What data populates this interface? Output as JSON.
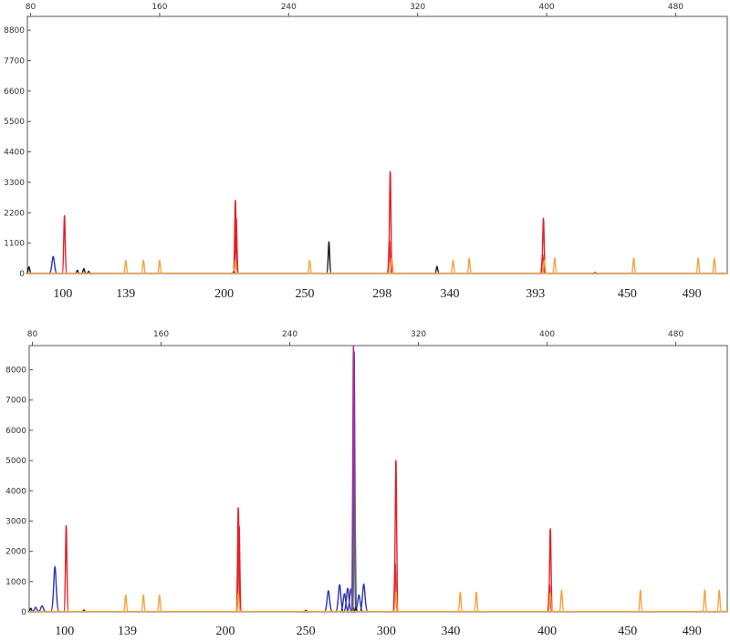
{
  "colors": {
    "red": "#e41f26",
    "orange": "#f7a23c",
    "blue": "#2b35b8",
    "black": "#1a1a1a",
    "green": "#2f8f5b",
    "magenta": "#b0309a",
    "axis": "#555555"
  },
  "chart_data": [
    {
      "type": "line",
      "title": "",
      "xlabel": "",
      "ylabel": "",
      "xlim": [
        78,
        512
      ],
      "ylim": [
        0,
        9300
      ],
      "top_ticks": [
        80,
        160,
        240,
        320,
        400,
        480
      ],
      "y_ticks": [
        0,
        1100,
        2200,
        3300,
        4400,
        5500,
        6600,
        7700,
        8800
      ],
      "size_labels": [
        {
          "text": "100",
          "x": 100
        },
        {
          "text": "139",
          "x": 139
        },
        {
          "text": "200",
          "x": 200
        },
        {
          "text": "250",
          "x": 250
        },
        {
          "text": "298",
          "x": 298
        },
        {
          "text": "340",
          "x": 340
        },
        {
          "text": "393",
          "x": 393
        },
        {
          "text": "450",
          "x": 450
        },
        {
          "text": "490",
          "x": 490
        }
      ],
      "peaks": [
        {
          "color": "red",
          "x": 101,
          "h": 2100
        },
        {
          "color": "red",
          "x": 207,
          "h": 2650
        },
        {
          "color": "red",
          "x": 207.5,
          "h": 2000
        },
        {
          "color": "red",
          "x": 303,
          "h": 3700
        },
        {
          "color": "red",
          "x": 302.5,
          "h": 1200
        },
        {
          "color": "red",
          "x": 398,
          "h": 2000
        },
        {
          "color": "red",
          "x": 397.5,
          "h": 700
        },
        {
          "color": "orange",
          "x": 139,
          "h": 480
        },
        {
          "color": "orange",
          "x": 150,
          "h": 480
        },
        {
          "color": "orange",
          "x": 160,
          "h": 480
        },
        {
          "color": "orange",
          "x": 207,
          "h": 480
        },
        {
          "color": "orange",
          "x": 253,
          "h": 480
        },
        {
          "color": "orange",
          "x": 304,
          "h": 550
        },
        {
          "color": "orange",
          "x": 342,
          "h": 480
        },
        {
          "color": "orange",
          "x": 352,
          "h": 560
        },
        {
          "color": "orange",
          "x": 398.5,
          "h": 480
        },
        {
          "color": "orange",
          "x": 405,
          "h": 560
        },
        {
          "color": "orange",
          "x": 454,
          "h": 560
        },
        {
          "color": "orange",
          "x": 494,
          "h": 560
        },
        {
          "color": "orange",
          "x": 504,
          "h": 560
        },
        {
          "color": "blue",
          "x": 94,
          "h": 620
        },
        {
          "color": "black",
          "x": 79,
          "h": 250
        },
        {
          "color": "black",
          "x": 109,
          "h": 120
        },
        {
          "color": "black",
          "x": 113,
          "h": 180
        },
        {
          "color": "black",
          "x": 116,
          "h": 80
        },
        {
          "color": "black",
          "x": 206,
          "h": 60
        },
        {
          "color": "black",
          "x": 265,
          "h": 1150
        },
        {
          "color": "black",
          "x": 332,
          "h": 260
        },
        {
          "color": "black",
          "x": 430,
          "h": 40
        }
      ]
    },
    {
      "type": "line",
      "title": "",
      "xlabel": "",
      "ylabel": "",
      "xlim": [
        78,
        512
      ],
      "ylim": [
        0,
        8800
      ],
      "top_ticks": [
        80,
        160,
        240,
        320,
        400,
        480
      ],
      "y_ticks": [
        0,
        1000,
        2000,
        3000,
        4000,
        5000,
        6000,
        7000,
        8000
      ],
      "size_labels": [
        {
          "text": "100",
          "x": 100
        },
        {
          "text": "139",
          "x": 139
        },
        {
          "text": "200",
          "x": 200
        },
        {
          "text": "250",
          "x": 250
        },
        {
          "text": "300",
          "x": 300
        },
        {
          "text": "340",
          "x": 340
        },
        {
          "text": "400",
          "x": 400
        },
        {
          "text": "450",
          "x": 450
        },
        {
          "text": "490",
          "x": 490
        }
      ],
      "peaks": [
        {
          "color": "red",
          "x": 101,
          "h": 2850
        },
        {
          "color": "red",
          "x": 208,
          "h": 3450
        },
        {
          "color": "red",
          "x": 208.5,
          "h": 2850
        },
        {
          "color": "red",
          "x": 306,
          "h": 5000
        },
        {
          "color": "red",
          "x": 305.5,
          "h": 1600
        },
        {
          "color": "red",
          "x": 402,
          "h": 2750
        },
        {
          "color": "red",
          "x": 401.5,
          "h": 900
        },
        {
          "color": "orange",
          "x": 138,
          "h": 560
        },
        {
          "color": "orange",
          "x": 149,
          "h": 560
        },
        {
          "color": "orange",
          "x": 159,
          "h": 560
        },
        {
          "color": "orange",
          "x": 208,
          "h": 620
        },
        {
          "color": "orange",
          "x": 306,
          "h": 650
        },
        {
          "color": "orange",
          "x": 346,
          "h": 650
        },
        {
          "color": "orange",
          "x": 356,
          "h": 650
        },
        {
          "color": "orange",
          "x": 402,
          "h": 620
        },
        {
          "color": "orange",
          "x": 409,
          "h": 720
        },
        {
          "color": "orange",
          "x": 458,
          "h": 720
        },
        {
          "color": "orange",
          "x": 498,
          "h": 720
        },
        {
          "color": "orange",
          "x": 507,
          "h": 720
        },
        {
          "color": "blue",
          "x": 82,
          "h": 150
        },
        {
          "color": "blue",
          "x": 86,
          "h": 200
        },
        {
          "color": "blue",
          "x": 94,
          "h": 1500
        },
        {
          "color": "blue",
          "x": 264,
          "h": 700
        },
        {
          "color": "blue",
          "x": 271,
          "h": 900
        },
        {
          "color": "blue",
          "x": 274,
          "h": 600
        },
        {
          "color": "blue",
          "x": 276,
          "h": 780
        },
        {
          "color": "blue",
          "x": 278,
          "h": 760
        },
        {
          "color": "blue",
          "x": 280,
          "h": 8600
        },
        {
          "color": "blue",
          "x": 283,
          "h": 560
        },
        {
          "color": "blue",
          "x": 286,
          "h": 920
        },
        {
          "color": "green",
          "x": 280.4,
          "h": 4000
        },
        {
          "color": "magenta",
          "x": 279.6,
          "h": 8800
        },
        {
          "color": "black",
          "x": 79,
          "h": 120
        },
        {
          "color": "black",
          "x": 112,
          "h": 60
        },
        {
          "color": "black",
          "x": 250,
          "h": 50
        },
        {
          "color": "black",
          "x": 281,
          "h": 150
        }
      ]
    }
  ]
}
